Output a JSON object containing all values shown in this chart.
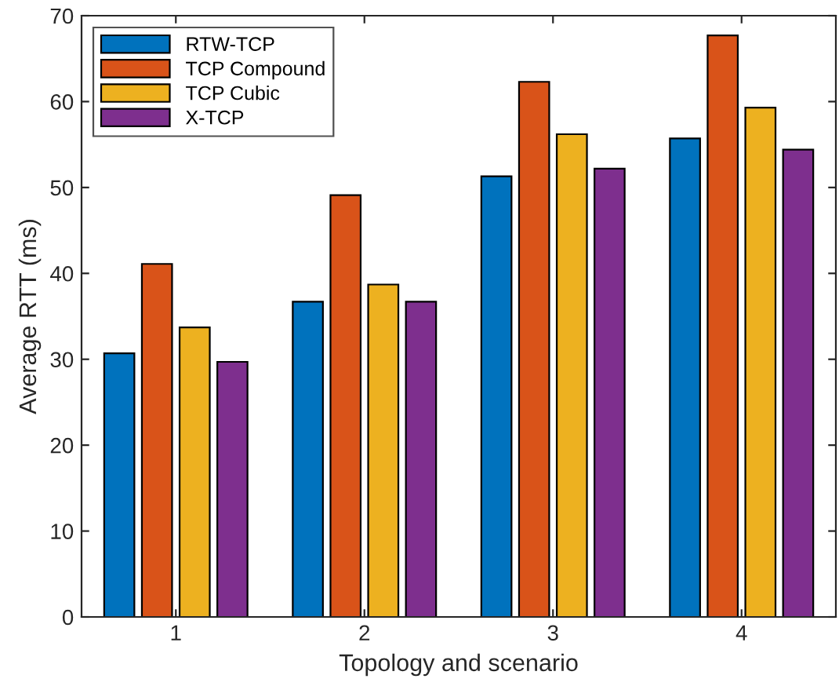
{
  "chart_data": {
    "type": "bar",
    "xlabel": "Topology and scenario",
    "ylabel": "Average RTT (ms)",
    "categories": [
      "1",
      "2",
      "3",
      "4"
    ],
    "series": [
      {
        "name": "RTW-TCP",
        "color": "#0072bd",
        "values": [
          30.7,
          36.7,
          51.3,
          55.7
        ]
      },
      {
        "name": "TCP Compound",
        "color": "#d95319",
        "values": [
          41.1,
          49.1,
          62.3,
          67.7
        ]
      },
      {
        "name": "TCP Cubic",
        "color": "#edb120",
        "values": [
          33.7,
          38.7,
          56.2,
          59.3
        ]
      },
      {
        "name": "X-TCP",
        "color": "#7e2f8e",
        "values": [
          29.7,
          36.7,
          52.2,
          54.4
        ]
      }
    ],
    "ylim": [
      0,
      70
    ],
    "yticks": [
      0,
      10,
      20,
      30,
      40,
      50,
      60,
      70
    ],
    "grid": false,
    "legend": "top left"
  }
}
